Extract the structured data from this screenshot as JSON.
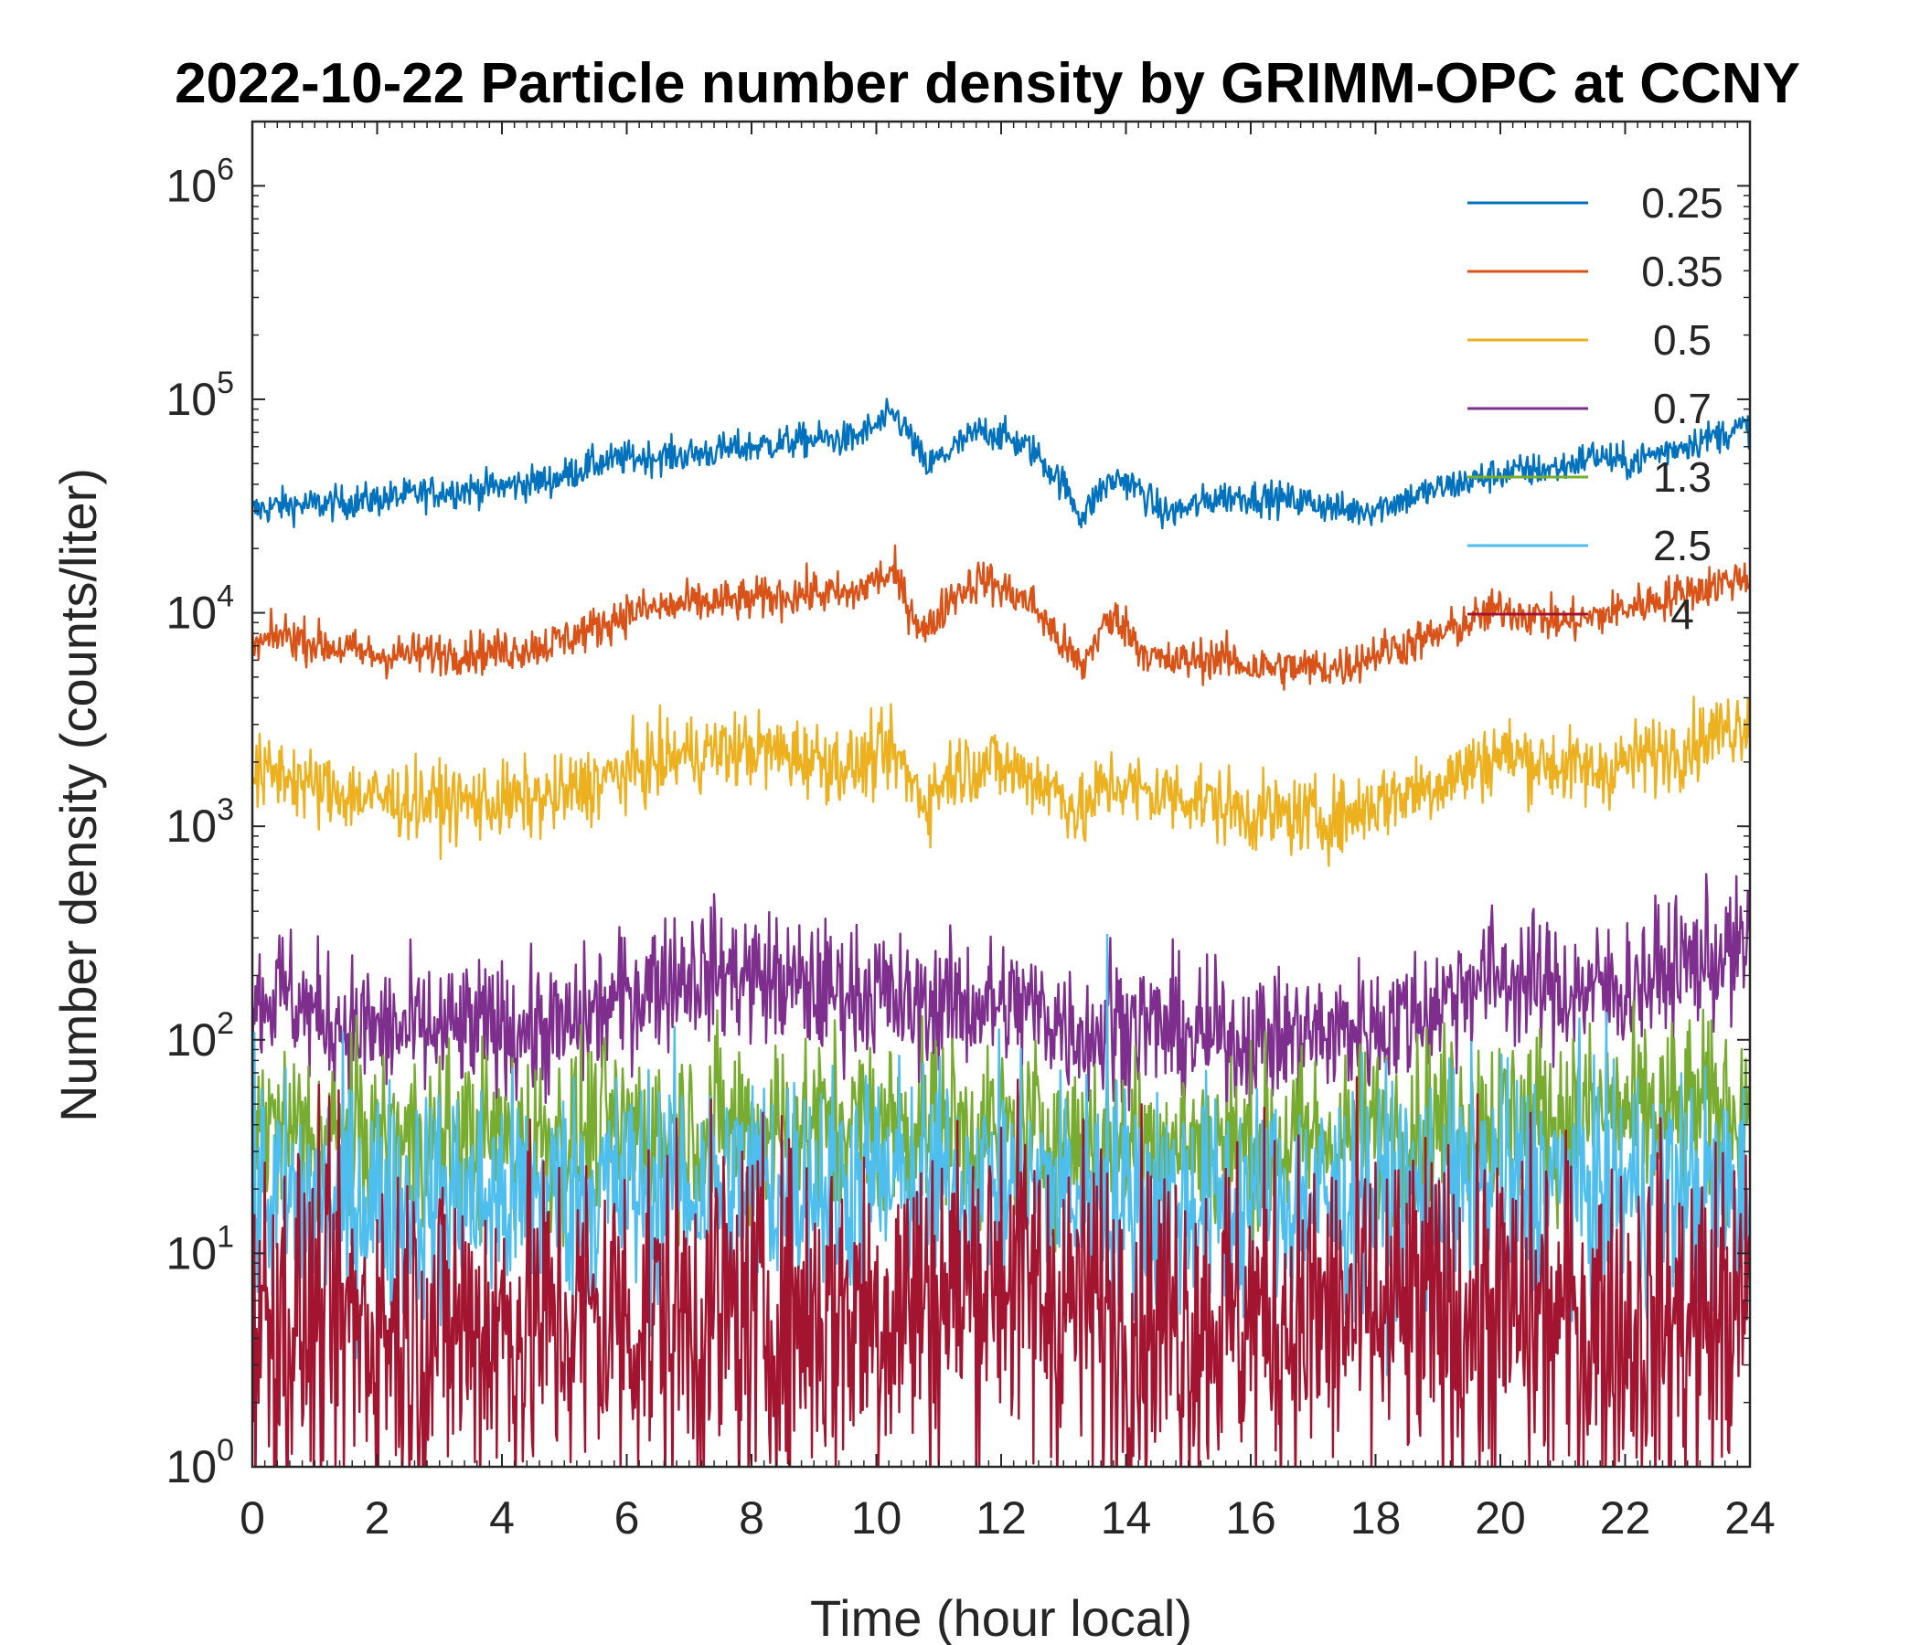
{
  "chart_data": {
    "type": "line",
    "title": "2022-10-22 Particle number density by GRIMM-OPC at CCNY",
    "xlabel": "Time (hour local)",
    "ylabel": "Number density (counts/liter)",
    "xlim": [
      0,
      24
    ],
    "ylim": [
      1,
      2000000
    ],
    "yscale": "log",
    "xticks": [
      0,
      2,
      4,
      6,
      8,
      10,
      12,
      14,
      16,
      18,
      20,
      22,
      24
    ],
    "yticks": [
      {
        "base": "10",
        "exp": "0",
        "value": 1
      },
      {
        "base": "10",
        "exp": "1",
        "value": 10
      },
      {
        "base": "10",
        "exp": "2",
        "value": 100
      },
      {
        "base": "10",
        "exp": "3",
        "value": 1000
      },
      {
        "base": "10",
        "exp": "4",
        "value": 10000
      },
      {
        "base": "10",
        "exp": "5",
        "value": 100000
      },
      {
        "base": "10",
        "exp": "6",
        "value": 1000000
      }
    ],
    "legend_position": "top-right",
    "series": [
      {
        "name": "0.25",
        "color": "#0072BD",
        "noise": 0.04,
        "x": [
          0,
          0.5,
          1,
          2,
          3,
          4,
          4.8,
          5.5,
          6,
          7,
          8,
          9,
          9.6,
          10,
          10.3,
          10.5,
          10.8,
          11.2,
          11.7,
          12,
          12.5,
          13,
          13.3,
          13.6,
          13.9,
          14.2,
          14.6,
          15,
          15.5,
          16,
          17,
          17.5,
          18,
          19,
          20,
          21,
          21.5,
          22,
          23,
          24
        ],
        "values": [
          30000,
          32000,
          32000,
          34000,
          37000,
          39000,
          42000,
          50000,
          53000,
          55000,
          60000,
          65000,
          65000,
          75000,
          85000,
          70000,
          48000,
          58000,
          72000,
          68000,
          58000,
          40000,
          28000,
          38000,
          43000,
          38000,
          29000,
          31000,
          35000,
          35000,
          33000,
          30000,
          31000,
          38000,
          45000,
          48000,
          55000,
          50000,
          62000,
          75000
        ]
      },
      {
        "name": "0.35",
        "color": "#D95319",
        "noise": 0.05,
        "x": [
          0,
          0.5,
          1,
          2,
          3,
          4,
          4.8,
          5.5,
          6,
          7,
          8,
          9,
          9.6,
          10,
          10.3,
          10.5,
          10.8,
          11.2,
          11.7,
          12,
          12.5,
          13,
          13.3,
          13.6,
          13.9,
          14.2,
          14.6,
          15,
          15.5,
          16,
          17,
          17.5,
          18,
          19,
          20,
          21,
          21.5,
          22,
          23,
          24
        ],
        "values": [
          6800,
          8000,
          7200,
          6300,
          6500,
          6600,
          7200,
          8500,
          10000,
          11000,
          11500,
          12500,
          12000,
          14500,
          15000,
          11000,
          8000,
          12000,
          14500,
          13000,
          11000,
          7000,
          5500,
          8500,
          9500,
          7000,
          5800,
          6000,
          6200,
          5600,
          5500,
          5600,
          6500,
          7800,
          10500,
          9000,
          9500,
          10500,
          12500,
          15000
        ]
      },
      {
        "name": "0.5",
        "color": "#EDB120",
        "noise": 0.09,
        "x": [
          0,
          0.5,
          1,
          2,
          3,
          4,
          4.8,
          5.5,
          6,
          7,
          8,
          9,
          9.6,
          10,
          10.3,
          10.5,
          10.8,
          11.2,
          11.7,
          12,
          12.5,
          13,
          13.3,
          13.6,
          13.9,
          14.2,
          14.6,
          15,
          15.5,
          16,
          17,
          17.5,
          18,
          19,
          20,
          21,
          21.5,
          22,
          23,
          24
        ],
        "values": [
          1700,
          1800,
          1500,
          1350,
          1300,
          1300,
          1350,
          1600,
          1800,
          2200,
          2300,
          2100,
          1900,
          2100,
          2200,
          1700,
          1300,
          1800,
          2000,
          1900,
          1700,
          1400,
          1100,
          1500,
          1600,
          1450,
          1400,
          1400,
          1250,
          1150,
          1100,
          1100,
          1300,
          1600,
          2200,
          1900,
          1800,
          2000,
          2400,
          3200
        ]
      },
      {
        "name": "0.7",
        "color": "#7E2F8E",
        "noise": 0.16,
        "x": [
          0,
          0.5,
          1,
          2,
          3,
          4,
          5,
          6,
          6.5,
          7,
          8,
          9,
          10,
          10.5,
          11,
          12,
          12.5,
          13,
          13.5,
          14,
          15,
          16,
          17,
          18,
          19,
          19.5,
          20,
          21,
          22,
          23,
          24
        ],
        "values": [
          150,
          170,
          130,
          110,
          110,
          115,
          110,
          160,
          190,
          210,
          200,
          170,
          170,
          140,
          150,
          145,
          140,
          120,
          105,
          125,
          105,
          100,
          105,
          115,
          145,
          190,
          200,
          170,
          175,
          230,
          260
        ],
        "spike": {
          "x": 13.75,
          "value": 300
        }
      },
      {
        "name": "1.3",
        "color": "#77AC30",
        "noise": 0.22,
        "x": [
          0,
          2,
          4,
          6,
          8,
          10,
          12,
          14,
          16,
          18,
          19.5,
          20,
          22,
          24
        ],
        "values": [
          38,
          33,
          34,
          37,
          40,
          40,
          37,
          33,
          32,
          36,
          44,
          43,
          44,
          48
        ]
      },
      {
        "name": "2.5",
        "color": "#4DBEEE",
        "noise": 0.28,
        "x": [
          0,
          2,
          4,
          6,
          8,
          10,
          12,
          14,
          16,
          18,
          20,
          22,
          24
        ],
        "values": [
          18,
          18,
          18,
          20,
          21,
          21,
          21,
          18,
          17,
          18,
          21,
          20,
          19
        ],
        "spike": {
          "x": 13.7,
          "value": 310
        }
      },
      {
        "name": "4",
        "color": "#A2142F",
        "noise": 0.42,
        "x": [
          0,
          2,
          4,
          6,
          8,
          10,
          11.5,
          12,
          12.5,
          14,
          16,
          18,
          20,
          22,
          24
        ],
        "values": [
          5,
          4.5,
          4.5,
          5,
          5,
          5.5,
          7,
          9,
          6.5,
          5,
          5,
          5,
          5,
          4.5,
          5
        ]
      }
    ]
  }
}
